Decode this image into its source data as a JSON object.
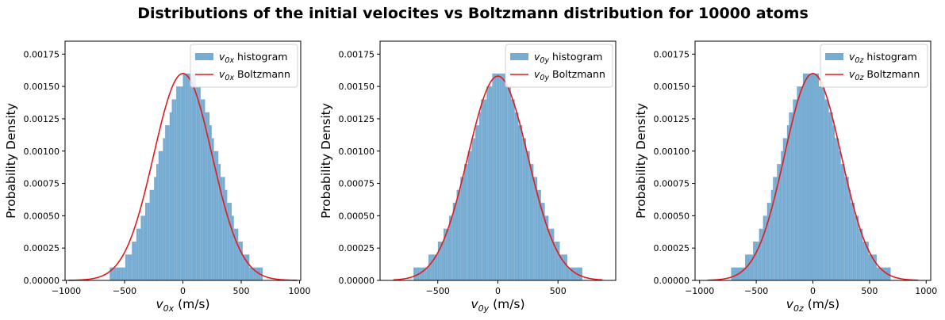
{
  "figure": {
    "title": "Distributions of the initial velocites vs Boltzmann distribution for 10000 atoms"
  },
  "colors": {
    "histogram": "#77acd2",
    "curve": "#e31a1c",
    "axes": "#000000"
  },
  "chart_data": [
    {
      "type": "bar",
      "component": "x",
      "title": "",
      "xlabel": {
        "sym": "v",
        "sub": "0x",
        "unit": " (m/s)"
      },
      "ylabel": "Probability Density",
      "xlim": [
        -1010,
        1010
      ],
      "ylim": [
        0,
        0.00185
      ],
      "xticks": [
        -1000,
        -500,
        0,
        500,
        1000
      ],
      "yticks": [
        0,
        0.00025,
        0.0005,
        0.00075,
        0.001,
        0.00125,
        0.0015,
        0.00175
      ],
      "legend": {
        "position": "top-right",
        "entries": [
          {
            "kind": "patch",
            "sym": "v",
            "sub": "0x",
            "text": " histogram"
          },
          {
            "kind": "line",
            "sym": "v",
            "sub": "0x",
            "text": " Boltzmann"
          }
        ]
      },
      "histogram": {
        "bin_edges": [
          -950,
          950
        ],
        "bins": 100,
        "densities": [
          0.0,
          0.0,
          0.0,
          0.0,
          0.0,
          0.0,
          0.0,
          0.0,
          0.0,
          0.0,
          0.0,
          0.0,
          0.0,
          0.0,
          0.0,
          0.0,
          0.0,
          0.0001,
          0.0001,
          0.0001,
          0.0001,
          0.0001,
          0.0001,
          0.0001,
          0.0002,
          0.0002,
          0.0002,
          0.0003,
          0.0003,
          0.0004,
          0.0004,
          0.0005,
          0.0005,
          0.0006,
          0.0006,
          0.0007,
          0.0007,
          0.0008,
          0.0009,
          0.001,
          0.001,
          0.0011,
          0.0012,
          0.0012,
          0.0013,
          0.0014,
          0.0014,
          0.0015,
          0.0015,
          0.0015,
          0.0016,
          0.0016,
          0.0016,
          0.0016,
          0.0016,
          0.0016,
          0.0015,
          0.0015,
          0.0014,
          0.0014,
          0.0013,
          0.0013,
          0.0012,
          0.0011,
          0.001,
          0.001,
          0.0009,
          0.0008,
          0.0008,
          0.0007,
          0.0006,
          0.0006,
          0.0005,
          0.0004,
          0.0004,
          0.0003,
          0.0003,
          0.0002,
          0.0002,
          0.0002,
          0.0001,
          0.0001,
          0.0001,
          0.0001,
          0.0001,
          0.0001,
          0.0,
          0.0,
          0.0,
          0.0,
          0.0,
          0.0,
          0.0,
          0.0,
          0.0,
          0.0,
          0.0,
          0.0,
          0.0,
          0.0
        ]
      },
      "boltzmann": {
        "x_range": [
          -980,
          980
        ],
        "mean": 0,
        "sigma": 250,
        "peak": 0.0016
      }
    },
    {
      "type": "bar",
      "component": "y",
      "title": "",
      "xlabel": {
        "sym": "v",
        "sub": "0y",
        "unit": " (m/s)"
      },
      "ylabel": "Probability Density",
      "xlim": [
        -980,
        980
      ],
      "ylim": [
        0,
        0.00185
      ],
      "xticks": [
        -500,
        0,
        500
      ],
      "yticks": [
        0,
        0.00025,
        0.0005,
        0.00075,
        0.001,
        0.00125,
        0.0015,
        0.00175
      ],
      "legend": {
        "position": "top-right",
        "entries": [
          {
            "kind": "patch",
            "sym": "v",
            "sub": "0y",
            "text": " histogram"
          },
          {
            "kind": "line",
            "sym": "v",
            "sub": "0y",
            "text": " Boltzmann"
          }
        ]
      },
      "histogram": {
        "bin_edges": [
          -780,
          780
        ],
        "bins": 100,
        "densities": [
          0.0,
          0.0,
          0.0,
          0.0,
          0.0,
          0.0001,
          0.0001,
          0.0001,
          0.0001,
          0.0001,
          0.0001,
          0.0001,
          0.0001,
          0.0002,
          0.0002,
          0.0002,
          0.0002,
          0.0002,
          0.0003,
          0.0003,
          0.0003,
          0.0004,
          0.0004,
          0.0004,
          0.0005,
          0.0005,
          0.0006,
          0.0006,
          0.0007,
          0.0007,
          0.0008,
          0.0008,
          0.0009,
          0.0009,
          0.001,
          0.001,
          0.0011,
          0.0011,
          0.0012,
          0.0012,
          0.0013,
          0.0014,
          0.0014,
          0.0014,
          0.0015,
          0.0015,
          0.0015,
          0.0016,
          0.0016,
          0.0016,
          0.0016,
          0.0016,
          0.0016,
          0.0016,
          0.0015,
          0.0015,
          0.0015,
          0.0014,
          0.0014,
          0.0013,
          0.0013,
          0.0012,
          0.0012,
          0.0011,
          0.0011,
          0.001,
          0.001,
          0.0009,
          0.0009,
          0.0008,
          0.0008,
          0.0007,
          0.0007,
          0.0006,
          0.0006,
          0.0005,
          0.0005,
          0.0004,
          0.0004,
          0.0004,
          0.0003,
          0.0003,
          0.0003,
          0.0002,
          0.0002,
          0.0002,
          0.0002,
          0.0001,
          0.0001,
          0.0001,
          0.0001,
          0.0001,
          0.0001,
          0.0001,
          0.0001,
          0.0,
          0.0,
          0.0,
          0.0,
          0.0
        ]
      },
      "boltzmann": {
        "x_range": [
          -870,
          870
        ],
        "mean": 0,
        "sigma": 250,
        "peak": 0.00158
      }
    },
    {
      "type": "bar",
      "component": "z",
      "title": "",
      "xlabel": {
        "sym": "v",
        "sub": "0z",
        "unit": " (m/s)"
      },
      "ylabel": "Probability Density",
      "xlim": [
        -1040,
        1040
      ],
      "ylim": [
        0,
        0.00185
      ],
      "xticks": [
        -1000,
        -500,
        0,
        500,
        1000
      ],
      "yticks": [
        0,
        0.00025,
        0.0005,
        0.00075,
        0.001,
        0.00125,
        0.0015,
        0.00175
      ],
      "legend": {
        "position": "top-right",
        "entries": [
          {
            "kind": "patch",
            "sym": "v",
            "sub": "0z",
            "text": " histogram"
          },
          {
            "kind": "line",
            "sym": "v",
            "sub": "0z",
            "text": " Boltzmann"
          }
        ]
      },
      "histogram": {
        "bin_edges": [
          -880,
          880
        ],
        "bins": 100,
        "densities": [
          0.0,
          0.0,
          0.0,
          0.0,
          0.0,
          0.0,
          0.0,
          0.0,
          0.0,
          0.0001,
          0.0001,
          0.0001,
          0.0001,
          0.0001,
          0.0001,
          0.0001,
          0.0002,
          0.0002,
          0.0002,
          0.0002,
          0.0003,
          0.0003,
          0.0003,
          0.0004,
          0.0004,
          0.0005,
          0.0005,
          0.0006,
          0.0006,
          0.0007,
          0.0008,
          0.0008,
          0.0009,
          0.0009,
          0.001,
          0.0011,
          0.0011,
          0.0012,
          0.0013,
          0.0013,
          0.0014,
          0.0014,
          0.0015,
          0.0015,
          0.0015,
          0.0016,
          0.0016,
          0.0016,
          0.0016,
          0.0016,
          0.0016,
          0.0016,
          0.0016,
          0.0015,
          0.0015,
          0.0015,
          0.0014,
          0.0014,
          0.0013,
          0.0013,
          0.0012,
          0.0011,
          0.0011,
          0.001,
          0.0009,
          0.0009,
          0.0008,
          0.0008,
          0.0007,
          0.0006,
          0.0006,
          0.0005,
          0.0005,
          0.0004,
          0.0004,
          0.0003,
          0.0003,
          0.0003,
          0.0002,
          0.0002,
          0.0002,
          0.0002,
          0.0001,
          0.0001,
          0.0001,
          0.0001,
          0.0001,
          0.0001,
          0.0001,
          0.0,
          0.0,
          0.0,
          0.0,
          0.0,
          0.0,
          0.0,
          0.0,
          0.0,
          0.0,
          0.0
        ]
      },
      "boltzmann": {
        "x_range": [
          -930,
          930
        ],
        "mean": 0,
        "sigma": 250,
        "peak": 0.0016
      }
    }
  ]
}
